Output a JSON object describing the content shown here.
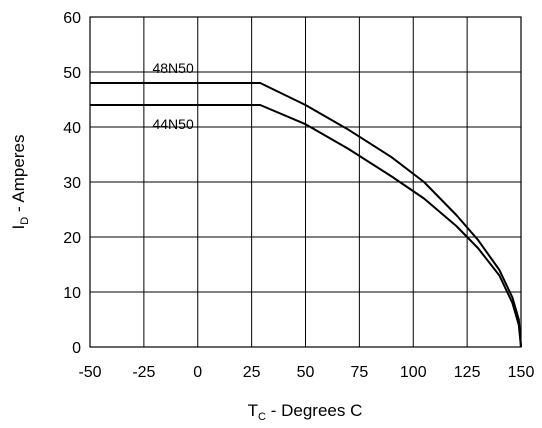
{
  "chart_data": {
    "type": "line",
    "title": "",
    "xlabel": {
      "main": "T",
      "sub": "C",
      "rest": " - Degrees C"
    },
    "ylabel": {
      "main": "I",
      "sub": "D",
      "rest": " - Amperes"
    },
    "xlim": [
      -50,
      150
    ],
    "ylim": [
      0,
      60
    ],
    "xticks": [
      -50,
      -25,
      0,
      25,
      50,
      75,
      100,
      125,
      150
    ],
    "yticks": [
      0,
      10,
      20,
      30,
      40,
      50,
      60
    ],
    "grid": true,
    "series": [
      {
        "name": "48N50",
        "points": [
          [
            -50,
            48
          ],
          [
            29,
            48
          ],
          [
            50,
            44
          ],
          [
            70,
            39.5
          ],
          [
            90,
            34.5
          ],
          [
            105,
            30
          ],
          [
            120,
            24
          ],
          [
            130,
            19.5
          ],
          [
            140,
            14
          ],
          [
            146,
            9
          ],
          [
            149,
            5
          ],
          [
            150,
            0
          ]
        ]
      },
      {
        "name": "44N50",
        "points": [
          [
            -50,
            44
          ],
          [
            29,
            44
          ],
          [
            50,
            40.5
          ],
          [
            70,
            36
          ],
          [
            90,
            31
          ],
          [
            105,
            27
          ],
          [
            120,
            22
          ],
          [
            130,
            18
          ],
          [
            140,
            13
          ],
          [
            146,
            8
          ],
          [
            149,
            4
          ],
          [
            150,
            0
          ]
        ]
      }
    ]
  }
}
